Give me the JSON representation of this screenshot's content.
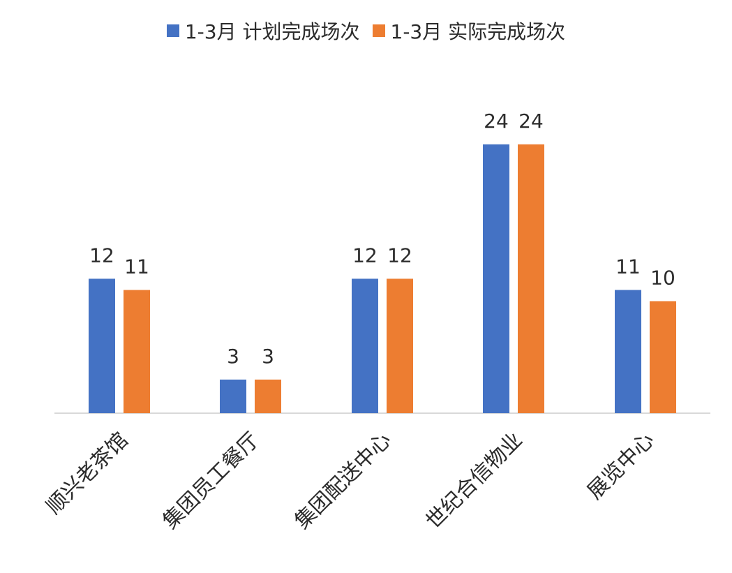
{
  "chart_data": {
    "type": "bar",
    "categories": [
      "顺兴老茶馆",
      "集团员工餐厅",
      "集团配送中心",
      "世纪合信物业",
      "展览中心"
    ],
    "series": [
      {
        "name": "1-3月 计划完成场次",
        "values": [
          12,
          3,
          12,
          24,
          11
        ],
        "color": "#4472C4"
      },
      {
        "name": "1-3月 实际完成场次",
        "values": [
          11,
          3,
          12,
          24,
          10
        ],
        "color": "#ED7D31"
      }
    ],
    "ylim": [
      0,
      30
    ],
    "grid": false,
    "legend_position": "top",
    "data_labels": true,
    "title": "",
    "xlabel": "",
    "ylabel": ""
  },
  "colors": {
    "axis": "#d9d9d9",
    "label_text": "#2b2b2b"
  }
}
